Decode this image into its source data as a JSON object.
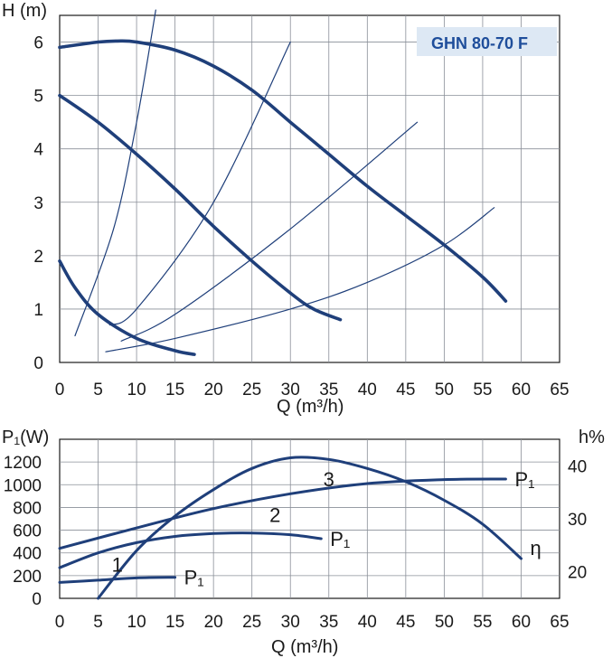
{
  "chart_data": [
    {
      "type": "line",
      "title": "GHN 80-70 F",
      "xlabel": "Q (m³/h)",
      "ylabel": "H (m)",
      "xlim": [
        0,
        65
      ],
      "ylim": [
        0,
        6.5
      ],
      "x_ticks": [
        "0",
        "5",
        "10",
        "15",
        "20",
        "25",
        "30",
        "35",
        "40",
        "45",
        "50",
        "55",
        "60",
        "65"
      ],
      "y_ticks": [
        "0",
        "1",
        "2",
        "3",
        "4",
        "5",
        "6"
      ],
      "grid": true,
      "series": [
        {
          "role": "pump_curve",
          "x": [
            0,
            5,
            7.5,
            10,
            15,
            20,
            25,
            30,
            35,
            40,
            45,
            50,
            55,
            58
          ],
          "y": [
            5.9,
            6.0,
            6.02,
            6.0,
            5.85,
            5.55,
            5.1,
            4.5,
            3.9,
            3.3,
            2.75,
            2.2,
            1.6,
            1.15
          ]
        },
        {
          "role": "pump_curve",
          "x": [
            0,
            5,
            10,
            15,
            20,
            25,
            30,
            33,
            36.5
          ],
          "y": [
            5.0,
            4.5,
            3.9,
            3.25,
            2.55,
            1.9,
            1.3,
            1.0,
            0.8
          ]
        },
        {
          "role": "pump_curve",
          "x": [
            0,
            2,
            5,
            10,
            15,
            17.5
          ],
          "y": [
            1.9,
            1.4,
            0.9,
            0.45,
            0.22,
            0.15
          ]
        },
        {
          "role": "system_curve",
          "x": [
            2,
            7,
            10,
            12.5
          ],
          "y": [
            0.5,
            2.5,
            4.5,
            6.6
          ]
        },
        {
          "role": "system_curve",
          "x": [
            6.5,
            10,
            20,
            30
          ],
          "y": [
            0.7,
            1.0,
            3.0,
            6.0
          ]
        },
        {
          "role": "system_curve",
          "x": [
            8,
            15,
            30,
            46.5
          ],
          "y": [
            0.4,
            0.9,
            2.5,
            4.5
          ]
        },
        {
          "role": "system_curve",
          "x": [
            6,
            15,
            30,
            40,
            50,
            56.5
          ],
          "y": [
            0.2,
            0.45,
            1.0,
            1.5,
            2.2,
            2.9
          ]
        }
      ]
    },
    {
      "type": "line",
      "xlabel": "Q (m³/h)",
      "ylabel": "P₁(W)",
      "y2label": "h%",
      "xlim": [
        0,
        65
      ],
      "ylim": [
        0,
        1400
      ],
      "y2lim": [
        15,
        45
      ],
      "x_ticks": [
        "0",
        "5",
        "10",
        "15",
        "20",
        "25",
        "30",
        "35",
        "40",
        "45",
        "50",
        "55",
        "60",
        "65"
      ],
      "y_ticks": [
        "0",
        "200",
        "400",
        "600",
        "800",
        "1000",
        "1200"
      ],
      "y2_ticks": [
        "20",
        "30",
        "40"
      ],
      "grid": true,
      "series": [
        {
          "name": "P₁",
          "curve": "3",
          "axis": "left",
          "x": [
            0,
            10,
            20,
            30,
            40,
            50,
            58
          ],
          "y": [
            440,
            620,
            790,
            920,
            1010,
            1045,
            1050
          ]
        },
        {
          "name": "P₁",
          "curve": "2",
          "axis": "left",
          "x": [
            0,
            5,
            10,
            15,
            20,
            25,
            30,
            34
          ],
          "y": [
            270,
            400,
            490,
            545,
            570,
            575,
            560,
            525
          ]
        },
        {
          "name": "P₁",
          "curve": "1",
          "axis": "left",
          "x": [
            0,
            5,
            10,
            15
          ],
          "y": [
            140,
            160,
            180,
            185
          ]
        },
        {
          "name": "η",
          "axis": "right",
          "x": [
            5,
            10,
            15,
            20,
            25,
            30,
            35,
            40,
            45,
            50,
            55,
            60
          ],
          "y": [
            15,
            24,
            30.5,
            35.5,
            39.5,
            41.5,
            41.2,
            39.5,
            37,
            33.5,
            29,
            22.5
          ]
        }
      ],
      "curve_labels": [
        "1",
        "2",
        "3"
      ],
      "series_labels": [
        "P₁",
        "P₁",
        "P₁",
        "η"
      ]
    }
  ]
}
